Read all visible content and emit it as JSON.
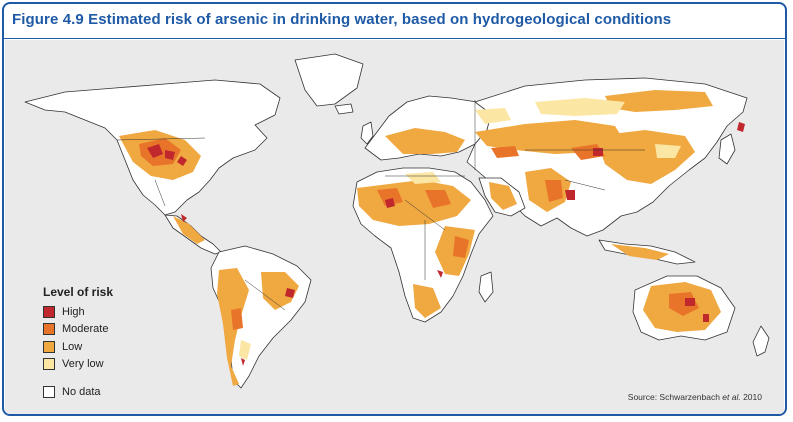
{
  "figure": {
    "title": "Figure 4.9 Estimated risk of arsenic in drinking water, based on hydrogeological conditions"
  },
  "legend": {
    "title": "Level of risk",
    "items": [
      {
        "label": "High",
        "color": "#c0282d"
      },
      {
        "label": "Moderate",
        "color": "#e8742a"
      },
      {
        "label": "Low",
        "color": "#f0a841"
      },
      {
        "label": "Very low",
        "color": "#fbe6a3"
      },
      {
        "label": "No data",
        "color": "#ffffff"
      }
    ]
  },
  "source": {
    "prefix": "Source: Schwarzenbach ",
    "etal": "et al.",
    "year": " 2010"
  },
  "colors": {
    "frame": "#1f5aa6",
    "ocean": "#eaeaea",
    "land": "#ffffff"
  }
}
